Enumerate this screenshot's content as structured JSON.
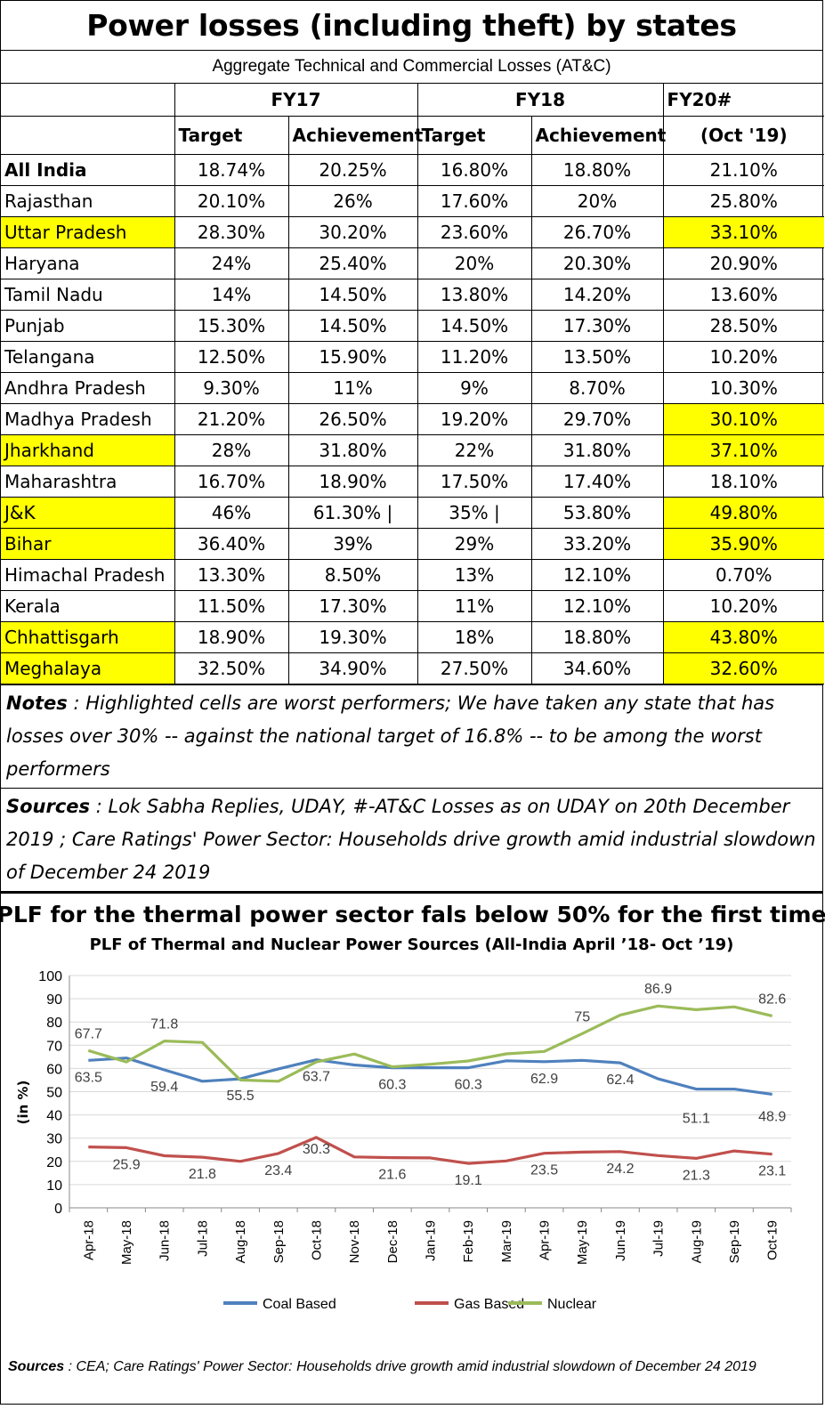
{
  "title": "Power losses (including theft) by states",
  "subtitle": "Aggregate Technical and Commercial Losses (AT&C)",
  "table": {
    "header_years": [
      "FY17",
      "FY18",
      "FY20#"
    ],
    "header_sub": [
      "Target",
      "Achievement",
      "Target",
      "Achievement",
      "(Oct '19)"
    ],
    "rows": [
      {
        "state": "All India",
        "bold": true,
        "values": [
          "18.74%",
          "20.25%",
          "16.80%",
          "18.80%",
          "21.10%"
        ],
        "highlight": false
      },
      {
        "state": "Rajasthan",
        "values": [
          "20.10%",
          "26%",
          "17.60%",
          "20%",
          "25.80%"
        ],
        "highlight": false
      },
      {
        "state": "Uttar Pradesh",
        "values": [
          "28.30%",
          "30.20%",
          "23.60%",
          "26.70%",
          "33.10%"
        ],
        "highlight": true
      },
      {
        "state": "Haryana",
        "values": [
          "24%",
          "25.40%",
          "20%",
          "20.30%",
          "20.90%"
        ],
        "highlight": false
      },
      {
        "state": "Tamil Nadu",
        "values": [
          "14%",
          "14.50%",
          "13.80%",
          "14.20%",
          "13.60%"
        ],
        "highlight": false
      },
      {
        "state": "Punjab",
        "values": [
          "15.30%",
          "14.50%",
          "14.50%",
          "17.30%",
          "28.50%"
        ],
        "highlight": false
      },
      {
        "state": "Telangana",
        "values": [
          "12.50%",
          "15.90%",
          "11.20%",
          "13.50%",
          "10.20%"
        ],
        "highlight": false
      },
      {
        "state": "Andhra Pradesh",
        "values": [
          "9.30%",
          "11%",
          "9%",
          "8.70%",
          "10.30%"
        ],
        "highlight": false
      },
      {
        "state": "Madhya Pradesh",
        "values": [
          "21.20%",
          "26.50%",
          "19.20%",
          "29.70%",
          "30.10%"
        ],
        "highlight": false,
        "highlight_last": true
      },
      {
        "state": "Jharkhand",
        "values": [
          "28%",
          "31.80%",
          "22%",
          "31.80%",
          "37.10%"
        ],
        "highlight": true
      },
      {
        "state": "Maharashtra",
        "values": [
          "16.70%",
          "18.90%",
          "17.50%",
          "17.40%",
          "18.10%"
        ],
        "highlight": false
      },
      {
        "state": "J&K",
        "values": [
          "46%",
          "61.30% |",
          "35% |",
          "53.80%",
          "49.80%"
        ],
        "highlight": true
      },
      {
        "state": "Bihar",
        "values": [
          "36.40%",
          "39%",
          "29%",
          "33.20%",
          "35.90%"
        ],
        "highlight": true
      },
      {
        "state": "Himachal Pradesh",
        "values": [
          "13.30%",
          "8.50%",
          "13%",
          "12.10%",
          "0.70%"
        ],
        "highlight": false
      },
      {
        "state": "Kerala",
        "values": [
          "11.50%",
          "17.30%",
          "11%",
          "12.10%",
          "10.20%"
        ],
        "highlight": false
      },
      {
        "state": "Chhattisgarh",
        "values": [
          "18.90%",
          "19.30%",
          "18%",
          "18.80%",
          "43.80%"
        ],
        "highlight": true
      },
      {
        "state": "Meghalaya",
        "values": [
          "32.50%",
          "34.90%",
          "27.50%",
          "34.60%",
          "32.60%"
        ],
        "highlight": true
      }
    ]
  },
  "notes": {
    "label": "Notes",
    "text": " : Highlighted cells are worst performers; We have taken any state that has losses over 30% -- against the national target of 16.8% --  to be among the worst performers"
  },
  "sources": {
    "label": "Sources",
    "text": " : Lok Sabha Replies, UDAY, #-AT&C Losses as on UDAY on 20th December 2019 ; Care Ratings' Power Sector: Households drive growth amid industrial slowdown of December 24 2019"
  },
  "chart_data": {
    "type": "line",
    "title": "PLF for the  thermal power sector fals below 50% for the first time",
    "subtitle": "PLF of Thermal and Nuclear Power Sources (All-India April ’18- Oct ’19)",
    "ylabel": "(in %)",
    "xlabel": "",
    "ylim": [
      0,
      100
    ],
    "yticks": [
      0,
      10,
      20,
      30,
      40,
      50,
      60,
      70,
      80,
      90,
      100
    ],
    "grid": true,
    "legend": "bottom",
    "categories": [
      "Apr-18",
      "May-18",
      "Jun-18",
      "Jul-18",
      "Aug-18",
      "Sep-18",
      "Oct-18",
      "Nov-18",
      "Dec-18",
      "Jan-19",
      "Feb-19",
      "Mar-19",
      "Apr-19",
      "May-19",
      "Jun-19",
      "Jul-19",
      "Aug-19",
      "Sep-19",
      "Oct-19"
    ],
    "series": [
      {
        "name": "Coal Based",
        "color": "#4f81bd",
        "values": [
          63.5,
          64.5,
          59.4,
          54.5,
          55.5,
          59.8,
          63.7,
          61.5,
          60.3,
          60.3,
          60.3,
          63.3,
          62.9,
          63.5,
          62.4,
          55.5,
          51.1,
          51.1,
          48.9
        ],
        "labels": {
          "0": "63.5",
          "2": "59.4",
          "4": "55.5",
          "6": "63.7",
          "8": "60.3",
          "10": "60.3",
          "12": "62.9",
          "14": "62.4",
          "16": "51.1",
          "18": "48.9"
        }
      },
      {
        "name": "Gas Based",
        "color": "#c0504d",
        "values": [
          26.2,
          25.9,
          22.4,
          21.8,
          20.0,
          23.4,
          30.3,
          21.9,
          21.6,
          21.5,
          19.1,
          20.2,
          23.5,
          24.0,
          24.2,
          22.5,
          21.3,
          24.5,
          23.1
        ],
        "labels": {
          "1": "25.9",
          "3": "21.8",
          "5": "23.4",
          "6": "30.3",
          "8": "21.6",
          "10": "19.1",
          "12": "23.5",
          "14": "24.2",
          "16": "21.3",
          "18": "23.1"
        }
      },
      {
        "name": "Nuclear",
        "color": "#9bbb59",
        "values": [
          67.7,
          62.8,
          71.8,
          71.2,
          55.0,
          54.5,
          62.8,
          66.2,
          60.7,
          61.8,
          63.2,
          66.3,
          67.3,
          75.0,
          83.0,
          86.9,
          85.3,
          86.5,
          82.6
        ],
        "labels": {
          "0": "67.7",
          "2": "71.8",
          "13": "75",
          "15": "86.9",
          "18": "82.6"
        }
      }
    ],
    "source_label": "Sources",
    "source_text": " : CEA; Care Ratings' Power Sector: Households drive growth amid industrial slowdown of December 24 2019"
  }
}
